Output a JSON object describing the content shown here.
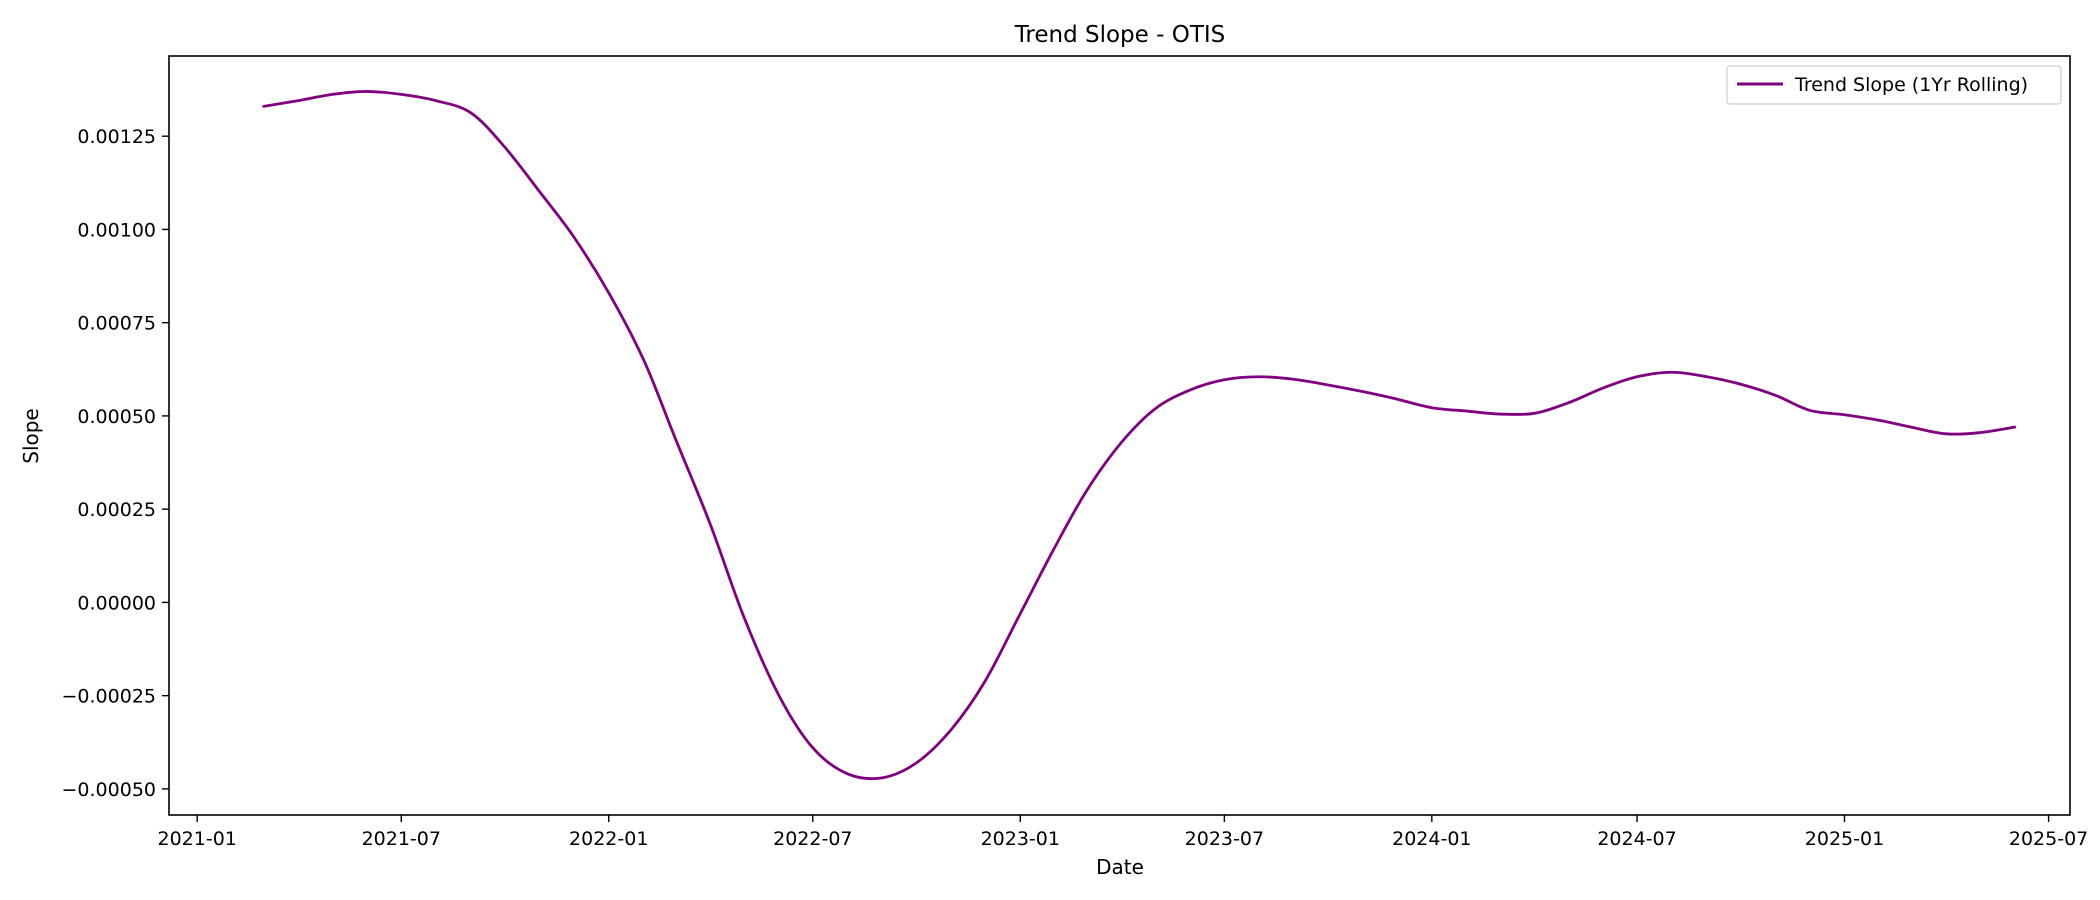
{
  "chart_data": {
    "type": "line",
    "title": "Trend Slope - OTIS",
    "xlabel": "Date",
    "ylabel": "Slope",
    "x_axis_type": "date",
    "xlim": [
      "2020-12-07",
      "2025-07-20"
    ],
    "ylim": [
      -0.00057,
      0.001465
    ],
    "x_ticks": [
      "2021-01",
      "2021-07",
      "2022-01",
      "2022-07",
      "2023-01",
      "2023-07",
      "2024-01",
      "2024-07",
      "2025-01",
      "2025-07"
    ],
    "y_ticks": [
      -0.0005,
      -0.00025,
      0.0,
      0.00025,
      0.0005,
      0.00075,
      0.001,
      0.00125
    ],
    "y_tick_labels": [
      "−0.00050",
      "−0.00025",
      "0.00000",
      "0.00025",
      "0.00050",
      "0.00075",
      "0.00100",
      "0.00125"
    ],
    "grid": false,
    "legend_position": "top-right",
    "series": [
      {
        "name": "Trend Slope (1Yr Rolling)",
        "color": "#800080",
        "points": [
          [
            "2021-03-01",
            0.00133
          ],
          [
            "2021-03-31",
            0.001345
          ],
          [
            "2021-05-01",
            0.001362
          ],
          [
            "2021-05-31",
            0.00137
          ],
          [
            "2021-07-01",
            0.001362
          ],
          [
            "2021-08-01",
            0.001345
          ],
          [
            "2021-09-01",
            0.001312
          ],
          [
            "2021-10-01",
            0.00122
          ],
          [
            "2021-11-01",
            0.0011
          ],
          [
            "2021-12-01",
            0.00098
          ],
          [
            "2022-01-01",
            0.00083
          ],
          [
            "2022-02-01",
            0.00065
          ],
          [
            "2022-03-01",
            0.00044
          ],
          [
            "2022-04-01",
            0.00021
          ],
          [
            "2022-05-01",
            -4e-05
          ],
          [
            "2022-06-01",
            -0.00025
          ],
          [
            "2022-07-01",
            -0.00039
          ],
          [
            "2022-08-01",
            -0.00046
          ],
          [
            "2022-09-01",
            -0.00047
          ],
          [
            "2022-10-01",
            -0.00043
          ],
          [
            "2022-11-01",
            -0.00034
          ],
          [
            "2022-12-01",
            -0.00021
          ],
          [
            "2023-01-01",
            -3e-05
          ],
          [
            "2023-02-01",
            0.00015
          ],
          [
            "2023-03-01",
            0.0003
          ],
          [
            "2023-04-01",
            0.00043
          ],
          [
            "2023-05-01",
            0.00052
          ],
          [
            "2023-06-01",
            0.00057
          ],
          [
            "2023-07-01",
            0.000597
          ],
          [
            "2023-08-01",
            0.000605
          ],
          [
            "2023-09-01",
            0.000598
          ],
          [
            "2023-10-01",
            0.000583
          ],
          [
            "2023-11-01",
            0.000565
          ],
          [
            "2023-12-01",
            0.000545
          ],
          [
            "2024-01-01",
            0.000522
          ],
          [
            "2024-02-01",
            0.000513
          ],
          [
            "2024-03-01",
            0.000505
          ],
          [
            "2024-04-01",
            0.000507
          ],
          [
            "2024-05-01",
            0.000535
          ],
          [
            "2024-06-01",
            0.000575
          ],
          [
            "2024-07-01",
            0.000605
          ],
          [
            "2024-08-01",
            0.000617
          ],
          [
            "2024-09-01",
            0.000605
          ],
          [
            "2024-10-01",
            0.000585
          ],
          [
            "2024-11-01",
            0.000555
          ],
          [
            "2024-12-01",
            0.000515
          ],
          [
            "2025-01-01",
            0.000503
          ],
          [
            "2025-02-01",
            0.000488
          ],
          [
            "2025-03-01",
            0.00047
          ],
          [
            "2025-04-01",
            0.000452
          ],
          [
            "2025-05-01",
            0.000455
          ],
          [
            "2025-06-01",
            0.00047
          ]
        ]
      }
    ]
  }
}
